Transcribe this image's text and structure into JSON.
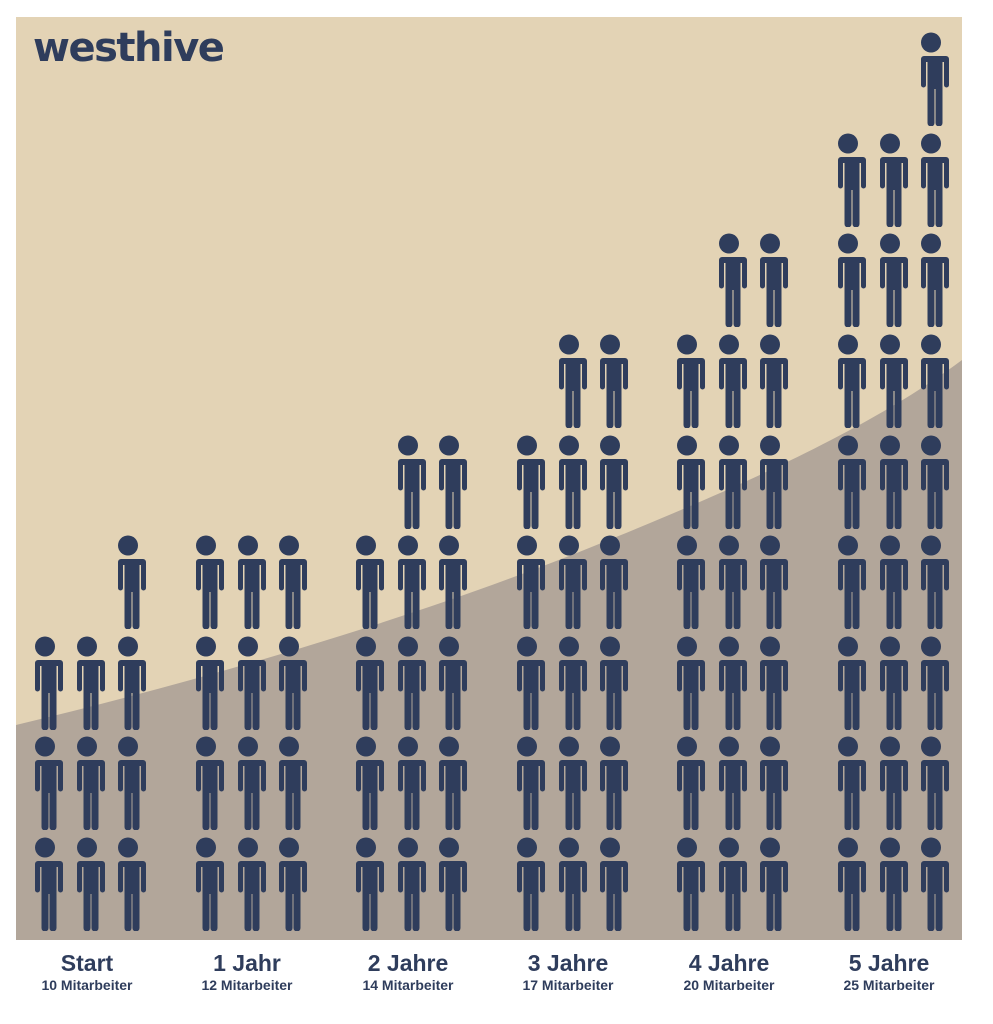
{
  "brand": {
    "logo_text": "westhive"
  },
  "colors": {
    "background_top": "#e3d3b5",
    "background_bottom": "#b2a69a",
    "figure": "#2f3d5c",
    "text": "#2f3d5c"
  },
  "groups": [
    {
      "label": "Start",
      "sub": "10 Mitarbeiter"
    },
    {
      "label": "1 Jahr",
      "sub": "12 Mitarbeiter"
    },
    {
      "label": "2 Jahre",
      "sub": "14 Mitarbeiter"
    },
    {
      "label": "3 Jahre",
      "sub": "17 Mitarbeiter"
    },
    {
      "label": "4 Jahre",
      "sub": "20 Mitarbeiter"
    },
    {
      "label": "5 Jahre",
      "sub": "25 Mitarbeiter"
    }
  ],
  "chart_data": {
    "type": "bar",
    "subtype": "pictogram",
    "title": "westhive",
    "categories": [
      "Start",
      "1 Jahr",
      "2 Jahre",
      "3 Jahre",
      "4 Jahre",
      "5 Jahre"
    ],
    "values": [
      10,
      12,
      14,
      17,
      20,
      25
    ],
    "unit": "Mitarbeiter",
    "icon": "person-icon",
    "icons_per_row": 3,
    "xlabel": "",
    "ylabel": "",
    "grid": false,
    "legend": null
  }
}
